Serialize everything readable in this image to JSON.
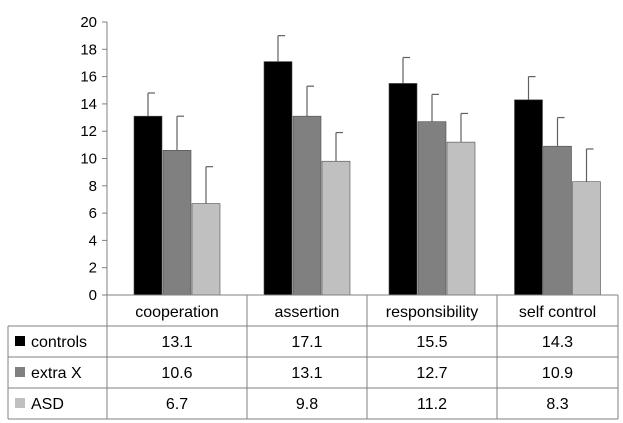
{
  "chart_data": {
    "type": "bar",
    "categories": [
      "cooperation",
      "assertion",
      "responsibility",
      "self control"
    ],
    "series": [
      {
        "name": "controls",
        "values": [
          13.1,
          17.1,
          15.5,
          14.3
        ],
        "errors": [
          1.7,
          1.9,
          1.9,
          1.7
        ],
        "color": "#000000"
      },
      {
        "name": "extra X",
        "values": [
          10.6,
          13.1,
          12.7,
          10.9
        ],
        "errors": [
          2.5,
          2.2,
          2.0,
          2.1
        ],
        "color": "#808080"
      },
      {
        "name": "ASD",
        "values": [
          6.7,
          9.8,
          11.2,
          8.3
        ],
        "errors": [
          2.7,
          2.1,
          2.1,
          2.4
        ],
        "color": "#c0c0c0"
      }
    ],
    "ylim": [
      0,
      20
    ],
    "yticks": [
      0,
      2,
      4,
      6,
      8,
      10,
      12,
      14,
      16,
      18,
      20
    ],
    "grid": false,
    "legend": "data table below plot",
    "title": "",
    "xlabel": "",
    "ylabel": ""
  }
}
